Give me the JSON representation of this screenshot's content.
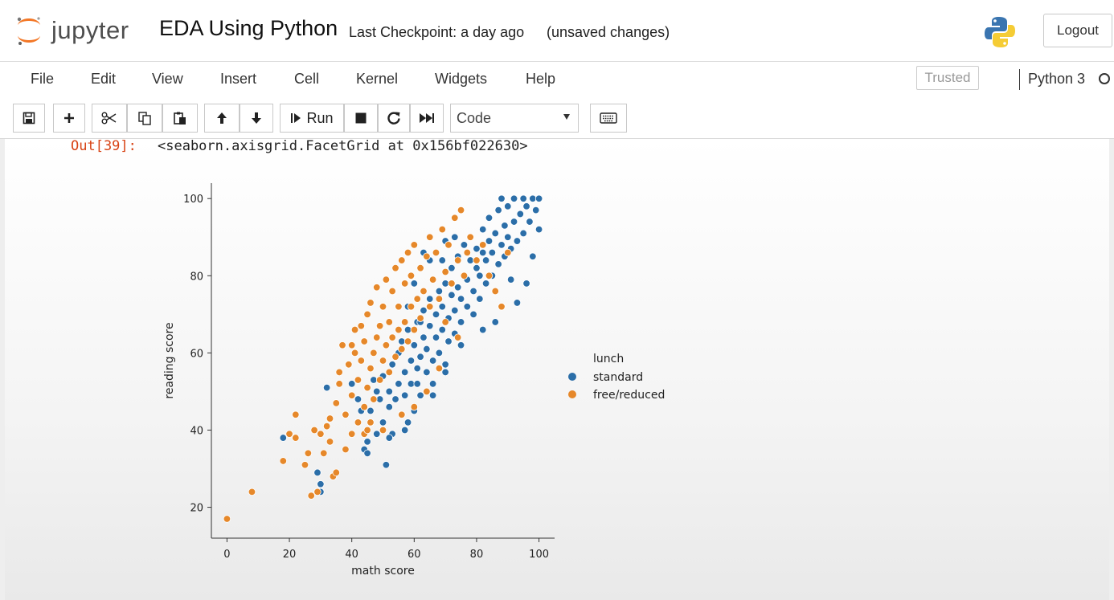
{
  "header": {
    "logo_text": "jupyter",
    "notebook_title": "EDA Using Python",
    "checkpoint": "Last Checkpoint: a day ago",
    "save_status": "(unsaved changes)",
    "logout_label": "Logout"
  },
  "menu": {
    "items": [
      "File",
      "Edit",
      "View",
      "Insert",
      "Cell",
      "Kernel",
      "Widgets",
      "Help"
    ],
    "trusted_label": "Trusted",
    "kernel_name": "Python 3"
  },
  "toolbar": {
    "run_label": "Run",
    "cell_type": "Code",
    "icons": [
      "save-icon",
      "plus-icon",
      "scissors-icon",
      "copy-icon",
      "paste-icon",
      "arrow-up-icon",
      "arrow-down-icon",
      "run-icon",
      "stop-icon",
      "restart-icon",
      "fast-forward-icon",
      "keyboard-icon"
    ]
  },
  "output": {
    "prompt": "Out[39]:",
    "text": "<seaborn.axisgrid.FacetGrid at 0x156bf022630>"
  },
  "colors": {
    "standard": "#2b6ea8",
    "free_reduced": "#e6882a",
    "out_prompt": "#d84315"
  },
  "chart_data": {
    "type": "scatter",
    "title": "",
    "xlabel": "math score",
    "ylabel": "reading score",
    "xlim": [
      -5,
      105
    ],
    "ylim": [
      12,
      104
    ],
    "xticks": [
      0,
      20,
      40,
      60,
      80,
      100
    ],
    "yticks": [
      20,
      40,
      60,
      80,
      100
    ],
    "legend_title": "lunch",
    "legend_position": "right",
    "series": [
      {
        "name": "standard",
        "color": "#2b6ea8",
        "points": [
          [
            18,
            38
          ],
          [
            29,
            29
          ],
          [
            30,
            26
          ],
          [
            30,
            24
          ],
          [
            32,
            51
          ],
          [
            40,
            52
          ],
          [
            42,
            48
          ],
          [
            44,
            35
          ],
          [
            45,
            34
          ],
          [
            45,
            37
          ],
          [
            46,
            45
          ],
          [
            47,
            53
          ],
          [
            48,
            50
          ],
          [
            49,
            48
          ],
          [
            50,
            54
          ],
          [
            50,
            42
          ],
          [
            51,
            31
          ],
          [
            52,
            46
          ],
          [
            52,
            50
          ],
          [
            53,
            39
          ],
          [
            53,
            57
          ],
          [
            54,
            48
          ],
          [
            55,
            52
          ],
          [
            55,
            60
          ],
          [
            56,
            44
          ],
          [
            56,
            63
          ],
          [
            57,
            49
          ],
          [
            57,
            55
          ],
          [
            58,
            42
          ],
          [
            58,
            66
          ],
          [
            59,
            52
          ],
          [
            59,
            58
          ],
          [
            60,
            45
          ],
          [
            60,
            62
          ],
          [
            61,
            56
          ],
          [
            61,
            68
          ],
          [
            62,
            49
          ],
          [
            62,
            59
          ],
          [
            63,
            64
          ],
          [
            63,
            71
          ],
          [
            64,
            55
          ],
          [
            64,
            61
          ],
          [
            65,
            67
          ],
          [
            65,
            74
          ],
          [
            66,
            52
          ],
          [
            66,
            58
          ],
          [
            67,
            64
          ],
          [
            67,
            70
          ],
          [
            68,
            60
          ],
          [
            68,
            76
          ],
          [
            69,
            66
          ],
          [
            69,
            72
          ],
          [
            70,
            57
          ],
          [
            70,
            78
          ],
          [
            71,
            63
          ],
          [
            71,
            69
          ],
          [
            72,
            75
          ],
          [
            72,
            82
          ],
          [
            73,
            65
          ],
          [
            73,
            71
          ],
          [
            74,
            77
          ],
          [
            74,
            85
          ],
          [
            75,
            68
          ],
          [
            75,
            74
          ],
          [
            76,
            80
          ],
          [
            76,
            88
          ],
          [
            77,
            72
          ],
          [
            77,
            79
          ],
          [
            78,
            84
          ],
          [
            78,
            90
          ],
          [
            79,
            70
          ],
          [
            79,
            76
          ],
          [
            80,
            82
          ],
          [
            80,
            87
          ],
          [
            81,
            74
          ],
          [
            81,
            80
          ],
          [
            82,
            86
          ],
          [
            82,
            92
          ],
          [
            83,
            78
          ],
          [
            83,
            84
          ],
          [
            84,
            89
          ],
          [
            84,
            95
          ],
          [
            85,
            80
          ],
          [
            85,
            86
          ],
          [
            86,
            91
          ],
          [
            87,
            83
          ],
          [
            87,
            97
          ],
          [
            88,
            88
          ],
          [
            88,
            100
          ],
          [
            89,
            85
          ],
          [
            89,
            93
          ],
          [
            90,
            90
          ],
          [
            90,
            98
          ],
          [
            91,
            87
          ],
          [
            92,
            94
          ],
          [
            92,
            100
          ],
          [
            93,
            89
          ],
          [
            94,
            96
          ],
          [
            95,
            91
          ],
          [
            95,
            100
          ],
          [
            96,
            98
          ],
          [
            97,
            94
          ],
          [
            98,
            100
          ],
          [
            99,
            97
          ],
          [
            100,
            100
          ],
          [
            100,
            92
          ],
          [
            98,
            85
          ],
          [
            93,
            73
          ],
          [
            96,
            78
          ],
          [
            91,
            79
          ],
          [
            86,
            68
          ],
          [
            82,
            66
          ],
          [
            75,
            62
          ],
          [
            70,
            55
          ],
          [
            66,
            49
          ],
          [
            61,
            52
          ],
          [
            57,
            40
          ],
          [
            48,
            39
          ],
          [
            43,
            45
          ],
          [
            52,
            38
          ],
          [
            62,
            68
          ],
          [
            66,
            79
          ],
          [
            69,
            84
          ],
          [
            70,
            89
          ],
          [
            73,
            90
          ],
          [
            58,
            72
          ],
          [
            60,
            78
          ],
          [
            63,
            86
          ],
          [
            65,
            84
          ]
        ]
      },
      {
        "name": "free/reduced",
        "color": "#e6882a",
        "points": [
          [
            0,
            17
          ],
          [
            8,
            24
          ],
          [
            18,
            32
          ],
          [
            20,
            39
          ],
          [
            22,
            44
          ],
          [
            22,
            38
          ],
          [
            25,
            31
          ],
          [
            26,
            34
          ],
          [
            27,
            23
          ],
          [
            28,
            40
          ],
          [
            29,
            24
          ],
          [
            30,
            39
          ],
          [
            31,
            34
          ],
          [
            32,
            41
          ],
          [
            33,
            43
          ],
          [
            34,
            28
          ],
          [
            35,
            29
          ],
          [
            35,
            47
          ],
          [
            36,
            55
          ],
          [
            36,
            52
          ],
          [
            37,
            62
          ],
          [
            38,
            44
          ],
          [
            39,
            57
          ],
          [
            40,
            39
          ],
          [
            40,
            49
          ],
          [
            41,
            60
          ],
          [
            41,
            66
          ],
          [
            42,
            42
          ],
          [
            42,
            53
          ],
          [
            43,
            58
          ],
          [
            43,
            67
          ],
          [
            44,
            46
          ],
          [
            44,
            63
          ],
          [
            45,
            51
          ],
          [
            45,
            70
          ],
          [
            46,
            56
          ],
          [
            46,
            73
          ],
          [
            47,
            48
          ],
          [
            47,
            60
          ],
          [
            48,
            64
          ],
          [
            48,
            77
          ],
          [
            49,
            53
          ],
          [
            49,
            67
          ],
          [
            50,
            58
          ],
          [
            50,
            72
          ],
          [
            51,
            62
          ],
          [
            51,
            79
          ],
          [
            52,
            55
          ],
          [
            52,
            68
          ],
          [
            53,
            64
          ],
          [
            53,
            76
          ],
          [
            54,
            59
          ],
          [
            54,
            82
          ],
          [
            55,
            66
          ],
          [
            55,
            72
          ],
          [
            56,
            61
          ],
          [
            56,
            84
          ],
          [
            57,
            68
          ],
          [
            57,
            78
          ],
          [
            58,
            63
          ],
          [
            58,
            86
          ],
          [
            59,
            72
          ],
          [
            59,
            80
          ],
          [
            60,
            66
          ],
          [
            60,
            88
          ],
          [
            61,
            74
          ],
          [
            62,
            69
          ],
          [
            62,
            82
          ],
          [
            63,
            76
          ],
          [
            64,
            85
          ],
          [
            65,
            72
          ],
          [
            65,
            90
          ],
          [
            66,
            79
          ],
          [
            67,
            86
          ],
          [
            68,
            74
          ],
          [
            69,
            92
          ],
          [
            70,
            81
          ],
          [
            71,
            88
          ],
          [
            72,
            78
          ],
          [
            73,
            95
          ],
          [
            74,
            84
          ],
          [
            75,
            97
          ],
          [
            76,
            80
          ],
          [
            77,
            86
          ],
          [
            78,
            90
          ],
          [
            80,
            84
          ],
          [
            82,
            88
          ],
          [
            84,
            80
          ],
          [
            86,
            76
          ],
          [
            88,
            72
          ],
          [
            90,
            86
          ],
          [
            74,
            64
          ],
          [
            70,
            68
          ],
          [
            68,
            56
          ],
          [
            64,
            50
          ],
          [
            60,
            46
          ],
          [
            56,
            44
          ],
          [
            50,
            40
          ],
          [
            46,
            42
          ],
          [
            44,
            39
          ],
          [
            38,
            35
          ],
          [
            33,
            37
          ],
          [
            40,
            62
          ],
          [
            45,
            40
          ]
        ]
      }
    ]
  }
}
